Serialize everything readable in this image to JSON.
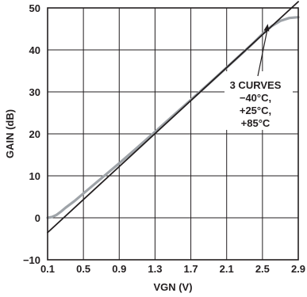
{
  "chart_data": {
    "type": "line",
    "title": "",
    "xlabel": "VGN (V)",
    "ylabel": "GAIN (dB)",
    "xlim": [
      0.1,
      2.9
    ],
    "ylim": [
      -10,
      50
    ],
    "grid": true,
    "x_ticks": [
      0.1,
      0.5,
      0.9,
      1.3,
      1.7,
      2.1,
      2.5,
      2.9
    ],
    "x_tick_labels": [
      "0.1",
      "0.5",
      "0.9",
      "1.3",
      "1.7",
      "2.1",
      "2.5",
      "2.9"
    ],
    "y_ticks": [
      -10,
      0,
      10,
      20,
      30,
      40,
      50
    ],
    "y_tick_labels": [
      "−10",
      "0",
      "10",
      "20",
      "30",
      "40",
      "50"
    ],
    "series": [
      {
        "color": "#9ea3a8",
        "x": [
          0.1,
          0.15,
          0.2,
          0.25,
          0.3,
          0.4,
          0.5,
          0.7,
          0.9,
          1.1,
          1.3,
          1.5,
          1.7,
          1.9,
          2.1,
          2.3,
          2.4,
          2.5,
          2.6,
          2.7,
          2.8,
          2.9
        ],
        "y": [
          0.0,
          0.2,
          0.7,
          1.5,
          2.4,
          4.0,
          5.8,
          9.4,
          13.0,
          16.7,
          20.5,
          24.3,
          28.1,
          31.9,
          35.8,
          39.7,
          41.7,
          43.8,
          45.6,
          46.9,
          47.6,
          47.8
        ]
      },
      {
        "color": "#231f20",
        "x": [
          0.1,
          2.9
        ],
        "y": [
          -3.5,
          51.5
        ]
      }
    ],
    "annotations": [
      {
        "lines": [
          "3 CURVES",
          "−40°C,",
          "+25°C,",
          "+85°C"
        ],
        "arrow_to": {
          "x": 2.56,
          "y": 46.2
        }
      }
    ]
  }
}
